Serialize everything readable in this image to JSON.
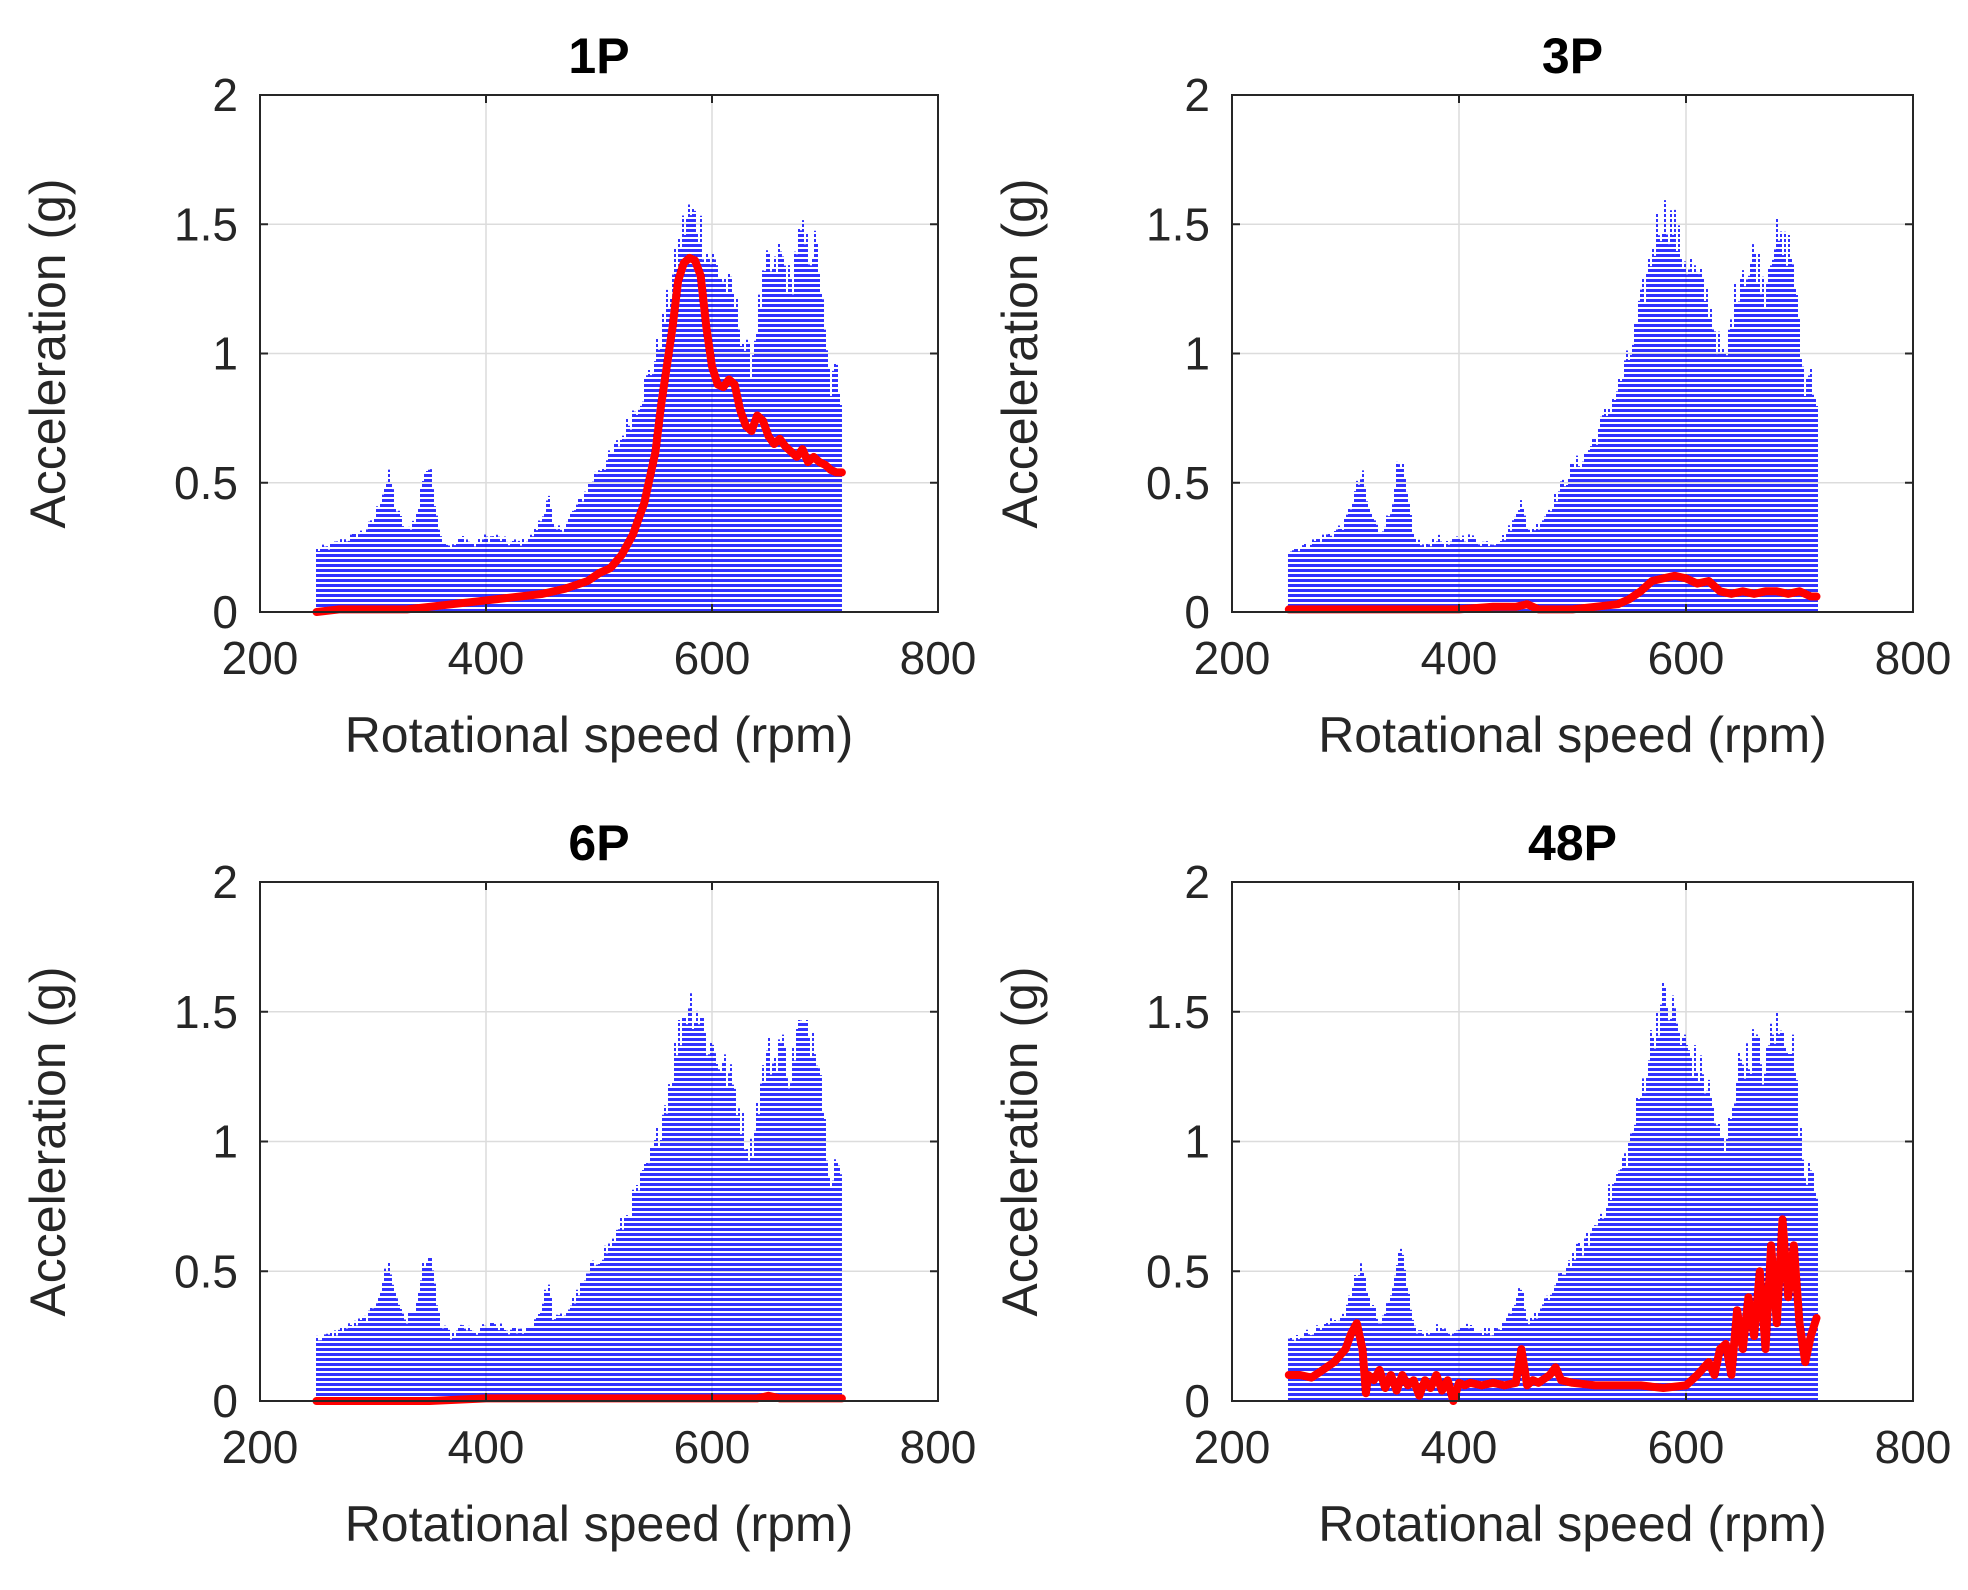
{
  "colors": {
    "envelope": "#0000FF",
    "order_track": "#FF0000",
    "grid": "#DCDCDC",
    "axes": "#262626"
  },
  "chart_data": [
    {
      "type": "area",
      "title": "1P",
      "xlabel": "Rotational speed (rpm)",
      "ylabel": "Acceleration (g)",
      "xlim": [
        200,
        800
      ],
      "ylim": [
        0,
        2
      ],
      "xticks": [
        "200",
        "400",
        "600",
        "800"
      ],
      "yticks": [
        "0",
        "0.5",
        "1",
        "1.5",
        "2"
      ],
      "grid": true,
      "envelope": {
        "x": [
          250,
          260,
          270,
          280,
          290,
          300,
          310,
          315,
          320,
          330,
          340,
          345,
          350,
          355,
          360,
          370,
          380,
          390,
          400,
          410,
          420,
          430,
          440,
          450,
          455,
          460,
          470,
          480,
          490,
          500,
          510,
          520,
          530,
          540,
          550,
          560,
          570,
          575,
          580,
          585,
          590,
          595,
          600,
          605,
          610,
          615,
          620,
          625,
          630,
          635,
          640,
          645,
          650,
          655,
          660,
          665,
          670,
          675,
          680,
          685,
          690,
          695,
          700,
          705,
          710,
          715
        ],
        "y": [
          0.25,
          0.26,
          0.28,
          0.3,
          0.32,
          0.36,
          0.5,
          0.55,
          0.42,
          0.32,
          0.4,
          0.57,
          0.58,
          0.45,
          0.3,
          0.26,
          0.3,
          0.27,
          0.3,
          0.3,
          0.28,
          0.28,
          0.3,
          0.38,
          0.48,
          0.32,
          0.35,
          0.42,
          0.5,
          0.58,
          0.62,
          0.7,
          0.8,
          0.9,
          1.02,
          1.22,
          1.45,
          1.55,
          1.6,
          1.58,
          1.55,
          1.45,
          1.42,
          1.38,
          1.34,
          1.3,
          1.25,
          1.15,
          1.05,
          1.0,
          1.18,
          1.3,
          1.4,
          1.35,
          1.45,
          1.38,
          1.3,
          1.48,
          1.5,
          1.45,
          1.48,
          1.4,
          1.1,
          0.9,
          0.98,
          0.85
        ]
      },
      "series": [
        {
          "x": [
            250,
            270,
            290,
            310,
            330,
            350,
            370,
            390,
            410,
            430,
            450,
            470,
            490,
            500,
            510,
            520,
            530,
            540,
            550,
            555,
            560,
            565,
            570,
            575,
            580,
            585,
            590,
            595,
            600,
            605,
            610,
            615,
            620,
            625,
            630,
            635,
            640,
            645,
            650,
            655,
            660,
            665,
            670,
            675,
            680,
            685,
            690,
            695,
            700,
            705,
            710,
            715
          ],
          "y": [
            0.0,
            0.01,
            0.01,
            0.01,
            0.01,
            0.02,
            0.03,
            0.04,
            0.05,
            0.06,
            0.07,
            0.09,
            0.12,
            0.15,
            0.17,
            0.22,
            0.3,
            0.42,
            0.62,
            0.8,
            0.95,
            1.1,
            1.28,
            1.35,
            1.37,
            1.36,
            1.3,
            1.1,
            0.95,
            0.88,
            0.87,
            0.9,
            0.88,
            0.78,
            0.72,
            0.7,
            0.76,
            0.74,
            0.68,
            0.65,
            0.67,
            0.64,
            0.62,
            0.6,
            0.63,
            0.58,
            0.6,
            0.58,
            0.57,
            0.55,
            0.54,
            0.54
          ]
        }
      ]
    },
    {
      "type": "area",
      "title": "3P",
      "xlabel": "Rotational speed (rpm)",
      "ylabel": "Acceleration (g)",
      "xlim": [
        200,
        800
      ],
      "ylim": [
        0,
        2
      ],
      "xticks": [
        "200",
        "400",
        "600",
        "800"
      ],
      "yticks": [
        "0",
        "0.5",
        "1",
        "1.5",
        "2"
      ],
      "grid": true,
      "envelope": {
        "x": [
          250,
          260,
          270,
          280,
          290,
          300,
          310,
          315,
          320,
          330,
          340,
          345,
          350,
          355,
          360,
          370,
          380,
          390,
          400,
          410,
          420,
          430,
          440,
          450,
          455,
          460,
          470,
          480,
          490,
          500,
          510,
          520,
          530,
          540,
          550,
          560,
          570,
          575,
          580,
          585,
          590,
          595,
          600,
          605,
          610,
          615,
          620,
          625,
          630,
          635,
          640,
          645,
          650,
          655,
          660,
          665,
          670,
          675,
          680,
          685,
          690,
          695,
          700,
          705,
          710,
          715
        ],
        "y": [
          0.25,
          0.26,
          0.28,
          0.3,
          0.32,
          0.36,
          0.5,
          0.55,
          0.42,
          0.32,
          0.4,
          0.57,
          0.58,
          0.45,
          0.3,
          0.26,
          0.3,
          0.27,
          0.3,
          0.3,
          0.28,
          0.28,
          0.3,
          0.38,
          0.48,
          0.32,
          0.35,
          0.42,
          0.5,
          0.58,
          0.62,
          0.7,
          0.8,
          0.9,
          1.02,
          1.22,
          1.45,
          1.55,
          1.6,
          1.58,
          1.55,
          1.45,
          1.42,
          1.38,
          1.34,
          1.3,
          1.25,
          1.15,
          1.05,
          1.0,
          1.18,
          1.3,
          1.4,
          1.35,
          1.45,
          1.38,
          1.3,
          1.48,
          1.5,
          1.45,
          1.48,
          1.4,
          1.1,
          0.9,
          0.98,
          0.85
        ]
      },
      "series": [
        {
          "x": [
            250,
            280,
            310,
            340,
            370,
            400,
            430,
            450,
            460,
            470,
            480,
            500,
            520,
            540,
            550,
            560,
            570,
            580,
            590,
            600,
            610,
            620,
            630,
            640,
            650,
            660,
            670,
            680,
            690,
            700,
            710,
            715
          ],
          "y": [
            0.01,
            0.01,
            0.01,
            0.01,
            0.01,
            0.01,
            0.02,
            0.02,
            0.03,
            0.01,
            0.01,
            0.01,
            0.02,
            0.03,
            0.05,
            0.08,
            0.12,
            0.13,
            0.14,
            0.13,
            0.11,
            0.12,
            0.08,
            0.07,
            0.08,
            0.07,
            0.08,
            0.08,
            0.07,
            0.08,
            0.06,
            0.06
          ]
        }
      ]
    },
    {
      "type": "area",
      "title": "6P",
      "xlabel": "Rotational speed (rpm)",
      "ylabel": "Acceleration (g)",
      "xlim": [
        200,
        800
      ],
      "ylim": [
        0,
        2
      ],
      "xticks": [
        "200",
        "400",
        "600",
        "800"
      ],
      "yticks": [
        "0",
        "0.5",
        "1",
        "1.5",
        "2"
      ],
      "grid": true,
      "envelope": {
        "x": [
          250,
          260,
          270,
          280,
          290,
          300,
          310,
          315,
          320,
          330,
          340,
          345,
          350,
          355,
          360,
          370,
          380,
          390,
          400,
          410,
          420,
          430,
          440,
          450,
          455,
          460,
          470,
          480,
          490,
          500,
          510,
          520,
          530,
          540,
          550,
          560,
          570,
          575,
          580,
          585,
          590,
          595,
          600,
          605,
          610,
          615,
          620,
          625,
          630,
          635,
          640,
          645,
          650,
          655,
          660,
          665,
          670,
          675,
          680,
          685,
          690,
          695,
          700,
          705,
          710,
          715
        ],
        "y": [
          0.25,
          0.26,
          0.28,
          0.3,
          0.32,
          0.36,
          0.5,
          0.55,
          0.42,
          0.32,
          0.4,
          0.57,
          0.58,
          0.45,
          0.3,
          0.26,
          0.3,
          0.27,
          0.3,
          0.3,
          0.28,
          0.28,
          0.3,
          0.38,
          0.48,
          0.32,
          0.35,
          0.42,
          0.5,
          0.58,
          0.62,
          0.7,
          0.8,
          0.9,
          1.02,
          1.22,
          1.45,
          1.55,
          1.6,
          1.58,
          1.55,
          1.45,
          1.42,
          1.38,
          1.34,
          1.3,
          1.25,
          1.15,
          1.05,
          1.0,
          1.18,
          1.3,
          1.4,
          1.35,
          1.45,
          1.38,
          1.3,
          1.48,
          1.5,
          1.45,
          1.48,
          1.4,
          1.1,
          0.9,
          0.98,
          0.85
        ]
      },
      "series": [
        {
          "x": [
            250,
            300,
            350,
            400,
            450,
            500,
            550,
            600,
            620,
            640,
            650,
            660,
            680,
            700,
            715
          ],
          "y": [
            0.0,
            0.0,
            0.0,
            0.01,
            0.01,
            0.01,
            0.01,
            0.01,
            0.01,
            0.01,
            0.02,
            0.01,
            0.01,
            0.01,
            0.01
          ]
        }
      ]
    },
    {
      "type": "area",
      "title": "48P",
      "xlabel": "Rotational speed (rpm)",
      "ylabel": "Acceleration (g)",
      "xlim": [
        200,
        800
      ],
      "ylim": [
        0,
        2
      ],
      "xticks": [
        "200",
        "400",
        "600",
        "800"
      ],
      "yticks": [
        "0",
        "0.5",
        "1",
        "1.5",
        "2"
      ],
      "grid": true,
      "envelope": {
        "x": [
          250,
          260,
          270,
          280,
          290,
          300,
          310,
          315,
          320,
          330,
          340,
          345,
          350,
          355,
          360,
          370,
          380,
          390,
          400,
          410,
          420,
          430,
          440,
          450,
          455,
          460,
          470,
          480,
          490,
          500,
          510,
          520,
          530,
          540,
          550,
          560,
          570,
          575,
          580,
          585,
          590,
          595,
          600,
          605,
          610,
          615,
          620,
          625,
          630,
          635,
          640,
          645,
          650,
          655,
          660,
          665,
          670,
          675,
          680,
          685,
          690,
          695,
          700,
          705,
          710,
          715
        ],
        "y": [
          0.25,
          0.26,
          0.28,
          0.3,
          0.32,
          0.36,
          0.5,
          0.55,
          0.42,
          0.32,
          0.4,
          0.57,
          0.58,
          0.45,
          0.3,
          0.26,
          0.3,
          0.27,
          0.3,
          0.3,
          0.28,
          0.28,
          0.3,
          0.38,
          0.48,
          0.32,
          0.35,
          0.42,
          0.5,
          0.58,
          0.62,
          0.7,
          0.8,
          0.9,
          1.02,
          1.22,
          1.45,
          1.55,
          1.6,
          1.58,
          1.55,
          1.45,
          1.42,
          1.38,
          1.34,
          1.3,
          1.25,
          1.15,
          1.05,
          1.0,
          1.18,
          1.3,
          1.4,
          1.35,
          1.45,
          1.38,
          1.3,
          1.48,
          1.5,
          1.45,
          1.48,
          1.4,
          1.1,
          0.9,
          0.98,
          0.85
        ]
      },
      "series": [
        {
          "x": [
            250,
            260,
            270,
            280,
            290,
            300,
            305,
            310,
            315,
            318,
            320,
            325,
            330,
            335,
            340,
            345,
            350,
            355,
            360,
            365,
            370,
            375,
            380,
            385,
            390,
            395,
            400,
            405,
            410,
            420,
            430,
            440,
            450,
            455,
            460,
            465,
            470,
            480,
            485,
            490,
            500,
            520,
            540,
            560,
            580,
            600,
            610,
            620,
            625,
            630,
            635,
            640,
            645,
            650,
            655,
            660,
            665,
            670,
            675,
            680,
            685,
            690,
            695,
            700,
            705,
            710,
            715
          ],
          "y": [
            0.1,
            0.1,
            0.09,
            0.12,
            0.15,
            0.2,
            0.26,
            0.3,
            0.2,
            0.03,
            0.1,
            0.08,
            0.12,
            0.05,
            0.1,
            0.04,
            0.1,
            0.06,
            0.08,
            0.02,
            0.08,
            0.05,
            0.1,
            0.04,
            0.08,
            0.0,
            0.07,
            0.06,
            0.07,
            0.06,
            0.07,
            0.06,
            0.07,
            0.2,
            0.06,
            0.08,
            0.07,
            0.1,
            0.13,
            0.08,
            0.07,
            0.06,
            0.06,
            0.06,
            0.05,
            0.06,
            0.1,
            0.15,
            0.1,
            0.2,
            0.22,
            0.1,
            0.35,
            0.2,
            0.4,
            0.25,
            0.5,
            0.2,
            0.6,
            0.3,
            0.7,
            0.4,
            0.6,
            0.3,
            0.15,
            0.25,
            0.32
          ]
        }
      ]
    }
  ]
}
